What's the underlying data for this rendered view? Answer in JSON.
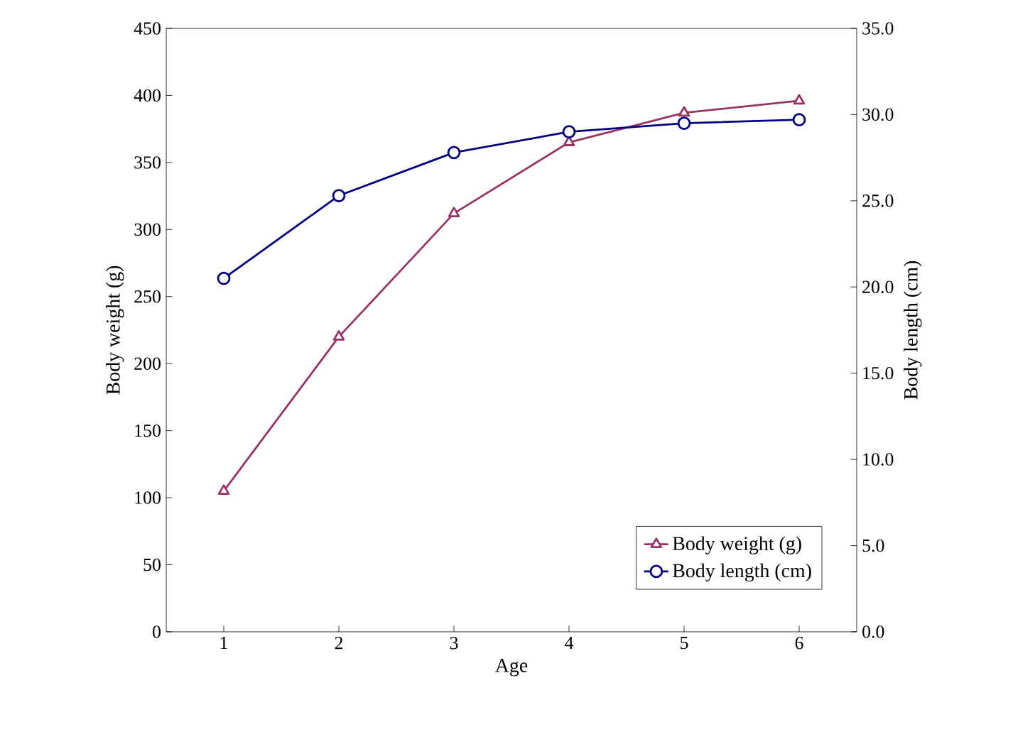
{
  "chart_data": {
    "type": "line",
    "xlabel": "Age",
    "ylabel": "Body weight (g)",
    "y2label": "Body length (cm)",
    "x": [
      1,
      2,
      3,
      4,
      5,
      6
    ],
    "series": [
      {
        "name": "Body weight (g)",
        "color": "#993366",
        "marker": "triangle",
        "values": [
          105,
          220,
          312,
          365,
          387,
          396
        ]
      },
      {
        "name": "Body length (cm)",
        "color": "#000080",
        "marker": "circle",
        "axis": "y2",
        "values": [
          20.5,
          25.3,
          27.8,
          29.0,
          29.5,
          29.7
        ]
      }
    ],
    "xlim": [
      0.5,
      6.5
    ],
    "xticks": [
      1,
      2,
      3,
      4,
      5,
      6
    ],
    "ylim": [
      0,
      450
    ],
    "yticks": [
      0,
      50,
      100,
      150,
      200,
      250,
      300,
      350,
      400,
      450
    ],
    "y2lim": [
      0,
      35
    ],
    "y2ticks": [
      {
        "value": 0,
        "label": "0.0"
      },
      {
        "value": 5,
        "label": "5.0"
      },
      {
        "value": 10,
        "label": "10.0"
      },
      {
        "value": 15,
        "label": "15.0"
      },
      {
        "value": 20,
        "label": "20.0"
      },
      {
        "value": 25,
        "label": "25.0"
      },
      {
        "value": 30,
        "label": "30.0"
      },
      {
        "value": 35,
        "label": "35.0"
      }
    ],
    "legend": "bottom right",
    "grid": false
  }
}
